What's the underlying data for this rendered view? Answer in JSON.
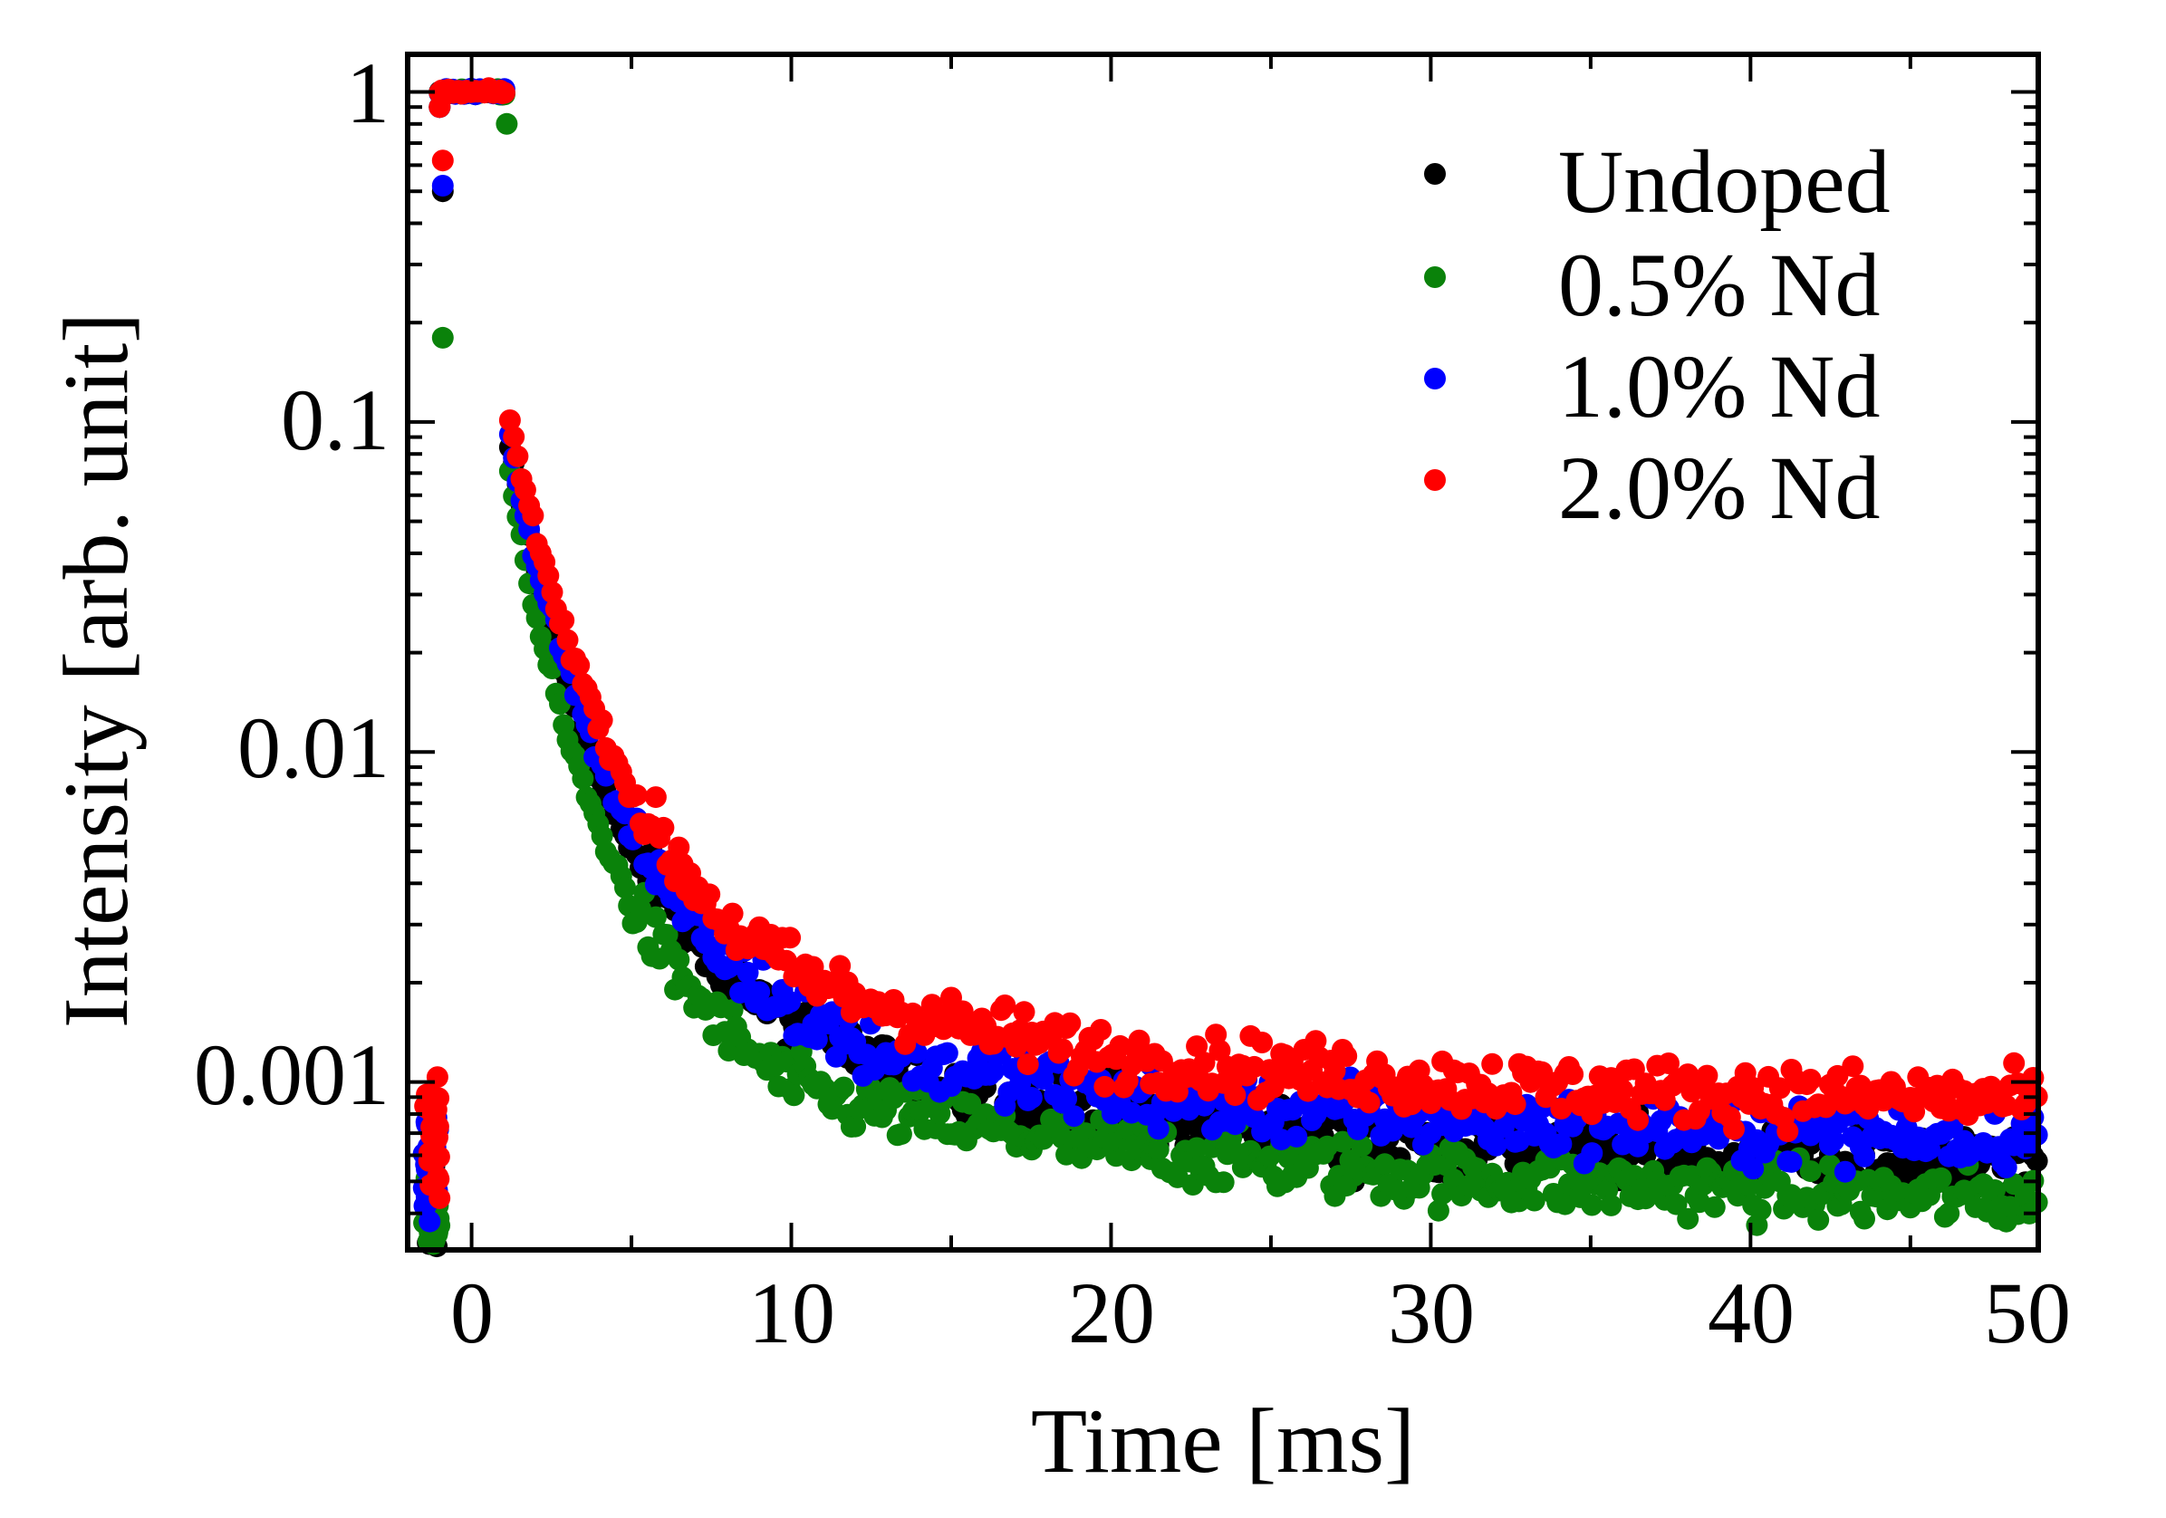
{
  "chart_data": {
    "type": "scatter",
    "xlabel": "Time [ms]",
    "ylabel": "Intensity [arb. unit]",
    "xlim": [
      -2,
      49
    ],
    "ylim": [
      0.00031,
      1.3
    ],
    "yscale": "log",
    "x_ticks": [
      0,
      10,
      20,
      30,
      40,
      50
    ],
    "x_tick_labels": [
      "0",
      "10",
      "20",
      "30",
      "40",
      "50"
    ],
    "y_ticks": [
      1,
      0.1,
      0.01,
      0.001
    ],
    "y_tick_labels": [
      "1",
      "0.1",
      "0.01",
      "0.001"
    ],
    "legend_position": "top-right",
    "series": [
      {
        "name": "Undoped",
        "color": "#000000",
        "pre_pulse_level": 0.00045,
        "plateau_level": 1.0,
        "peak_after_pulse": 0.085,
        "points": [
          [
            1.2,
            0.085
          ],
          [
            2,
            0.035
          ],
          [
            3,
            0.016
          ],
          [
            4,
            0.0085
          ],
          [
            5,
            0.0052
          ],
          [
            6,
            0.0036
          ],
          [
            8,
            0.0021
          ],
          [
            10,
            0.0015
          ],
          [
            12,
            0.0012
          ],
          [
            15,
            0.00095
          ],
          [
            20,
            0.00078
          ],
          [
            25,
            0.0007
          ],
          [
            30,
            0.00065
          ],
          [
            35,
            0.00062
          ],
          [
            40,
            0.0006
          ],
          [
            45,
            0.00058
          ],
          [
            49,
            0.00057
          ]
        ]
      },
      {
        "name": "0.5% Nd",
        "color": "#0a820a",
        "pre_pulse_level": 0.00036,
        "plateau_level": 1.0,
        "peak_after_pulse": 0.07,
        "points": [
          [
            1.2,
            0.07
          ],
          [
            2,
            0.026
          ],
          [
            3,
            0.011
          ],
          [
            4,
            0.0058
          ],
          [
            5,
            0.0035
          ],
          [
            6,
            0.0024
          ],
          [
            8,
            0.0014
          ],
          [
            10,
            0.00098
          ],
          [
            12,
            0.00085
          ],
          [
            15,
            0.00075
          ],
          [
            20,
            0.00063
          ],
          [
            25,
            0.00057
          ],
          [
            30,
            0.00052
          ],
          [
            35,
            0.00049
          ],
          [
            40,
            0.00047
          ],
          [
            45,
            0.00045
          ],
          [
            49,
            0.00044
          ]
        ]
      },
      {
        "name": "1.0% Nd",
        "color": "#0000ff",
        "pre_pulse_level": 0.0006,
        "plateau_level": 1.0,
        "peak_after_pulse": 0.088,
        "points": [
          [
            1.2,
            0.088
          ],
          [
            2,
            0.038
          ],
          [
            3,
            0.018
          ],
          [
            4,
            0.0095
          ],
          [
            5,
            0.0058
          ],
          [
            6,
            0.004
          ],
          [
            8,
            0.0023
          ],
          [
            10,
            0.0017
          ],
          [
            12,
            0.0013
          ],
          [
            15,
            0.0011
          ],
          [
            20,
            0.00092
          ],
          [
            25,
            0.00083
          ],
          [
            30,
            0.00078
          ],
          [
            35,
            0.00074
          ],
          [
            40,
            0.00071
          ],
          [
            45,
            0.00069
          ],
          [
            49,
            0.00068
          ]
        ]
      },
      {
        "name": "2.0% Nd",
        "color": "#ff0000",
        "pre_pulse_level": 0.0007,
        "plateau_level": 1.0,
        "peak_after_pulse": 0.1,
        "points": [
          [
            1.2,
            0.1
          ],
          [
            2,
            0.045
          ],
          [
            3,
            0.022
          ],
          [
            4,
            0.012
          ],
          [
            5,
            0.0075
          ],
          [
            6,
            0.0052
          ],
          [
            8,
            0.003
          ],
          [
            10,
            0.0022
          ],
          [
            12,
            0.0018
          ],
          [
            15,
            0.0015
          ],
          [
            20,
            0.0012
          ],
          [
            25,
            0.0011
          ],
          [
            30,
            0.001
          ],
          [
            35,
            0.00095
          ],
          [
            40,
            0.00092
          ],
          [
            45,
            0.0009
          ],
          [
            49,
            0.00088
          ]
        ]
      }
    ]
  }
}
